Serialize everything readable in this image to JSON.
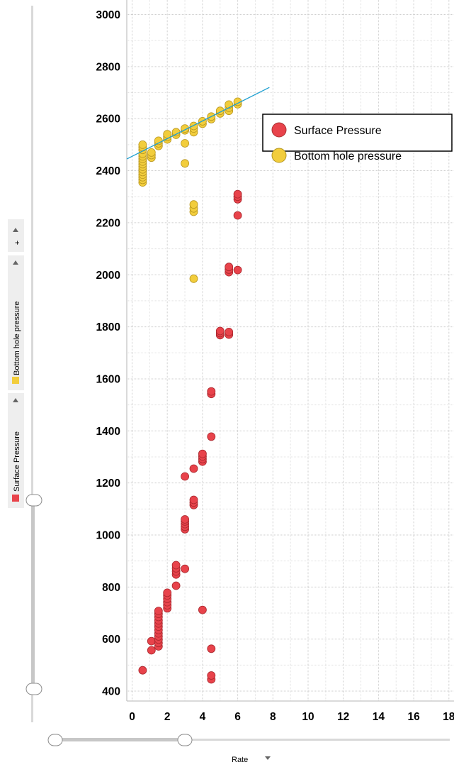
{
  "chart_data": {
    "type": "scatter",
    "xlabel": "Rate",
    "xlim": [
      0,
      19
    ],
    "ylim": [
      380,
      3000
    ],
    "xticks": [
      "0",
      "2",
      "4",
      "6",
      "8",
      "10",
      "12",
      "14",
      "16",
      "18"
    ],
    "yticks": [
      "400",
      "600",
      "800",
      "1000",
      "1200",
      "1400",
      "1600",
      "1800",
      "2000",
      "2200",
      "2400",
      "2600",
      "2800",
      "3000"
    ],
    "grid": true,
    "legend_position": "top-right",
    "series": [
      {
        "name": "Surface Pressure",
        "color": "#e8434b",
        "points": [
          [
            0.6,
            480
          ],
          [
            1.1,
            557
          ],
          [
            1.1,
            592
          ],
          [
            1.5,
            572
          ],
          [
            1.5,
            585
          ],
          [
            1.5,
            598
          ],
          [
            1.5,
            610
          ],
          [
            1.5,
            622
          ],
          [
            1.5,
            635
          ],
          [
            1.5,
            648
          ],
          [
            1.5,
            660
          ],
          [
            1.5,
            672
          ],
          [
            1.5,
            685
          ],
          [
            1.5,
            697
          ],
          [
            1.5,
            708
          ],
          [
            2.0,
            718
          ],
          [
            2.0,
            730
          ],
          [
            2.0,
            742
          ],
          [
            2.0,
            755
          ],
          [
            2.0,
            768
          ],
          [
            2.0,
            778
          ],
          [
            2.5,
            805
          ],
          [
            2.5,
            848
          ],
          [
            2.5,
            860
          ],
          [
            2.5,
            872
          ],
          [
            2.5,
            884
          ],
          [
            3.0,
            870
          ],
          [
            3.0,
            1022
          ],
          [
            3.0,
            1032
          ],
          [
            3.0,
            1042
          ],
          [
            3.0,
            1052
          ],
          [
            3.0,
            1060
          ],
          [
            3.0,
            1225
          ],
          [
            3.5,
            1115
          ],
          [
            3.5,
            1125
          ],
          [
            3.5,
            1135
          ],
          [
            3.5,
            1255
          ],
          [
            4.0,
            712
          ],
          [
            4.0,
            1282
          ],
          [
            4.0,
            1292
          ],
          [
            4.0,
            1302
          ],
          [
            4.0,
            1312
          ],
          [
            4.5,
            445
          ],
          [
            4.5,
            460
          ],
          [
            4.5,
            563
          ],
          [
            4.5,
            1378
          ],
          [
            4.5,
            1542
          ],
          [
            4.5,
            1552
          ],
          [
            5.0,
            1768
          ],
          [
            5.0,
            1776
          ],
          [
            5.0,
            1784
          ],
          [
            5.5,
            1770
          ],
          [
            5.5,
            1780
          ],
          [
            5.5,
            2010
          ],
          [
            5.5,
            2020
          ],
          [
            5.5,
            2030
          ],
          [
            6.0,
            2018
          ],
          [
            6.0,
            2228
          ],
          [
            6.0,
            2290
          ],
          [
            6.0,
            2300
          ],
          [
            6.0,
            2310
          ]
        ]
      },
      {
        "name": "Bottom hole pressure",
        "color": "#f2cd3c",
        "points": [
          [
            0.6,
            2355
          ],
          [
            0.6,
            2365
          ],
          [
            0.6,
            2375
          ],
          [
            0.6,
            2385
          ],
          [
            0.6,
            2395
          ],
          [
            0.6,
            2405
          ],
          [
            0.6,
            2415
          ],
          [
            0.6,
            2425
          ],
          [
            0.6,
            2435
          ],
          [
            0.6,
            2445
          ],
          [
            0.6,
            2455
          ],
          [
            0.6,
            2465
          ],
          [
            0.6,
            2480
          ],
          [
            0.6,
            2490
          ],
          [
            0.6,
            2500
          ],
          [
            1.1,
            2450
          ],
          [
            1.1,
            2460
          ],
          [
            1.1,
            2470
          ],
          [
            1.5,
            2495
          ],
          [
            1.5,
            2505
          ],
          [
            1.5,
            2515
          ],
          [
            2.0,
            2520
          ],
          [
            2.0,
            2530
          ],
          [
            2.0,
            2540
          ],
          [
            2.5,
            2538
          ],
          [
            2.5,
            2548
          ],
          [
            3.0,
            2428
          ],
          [
            3.0,
            2505
          ],
          [
            3.0,
            2555
          ],
          [
            3.0,
            2562
          ],
          [
            3.5,
            1985
          ],
          [
            3.5,
            2242
          ],
          [
            3.5,
            2255
          ],
          [
            3.5,
            2270
          ],
          [
            3.5,
            2548
          ],
          [
            3.5,
            2562
          ],
          [
            3.5,
            2572
          ],
          [
            4.0,
            2580
          ],
          [
            4.0,
            2590
          ],
          [
            4.5,
            2598
          ],
          [
            4.5,
            2608
          ],
          [
            5.0,
            2620
          ],
          [
            5.0,
            2630
          ],
          [
            5.5,
            2630
          ],
          [
            5.5,
            2642
          ],
          [
            5.5,
            2654
          ],
          [
            6.0,
            2655
          ],
          [
            6.0,
            2665
          ]
        ]
      }
    ],
    "trendline": {
      "color": "#1e9fd0",
      "x": [
        -0.3,
        7.8
      ],
      "y": [
        2445,
        2720
      ]
    }
  },
  "left_panel": {
    "series_labels": [
      "Surface Pressure",
      "Bottom hole pressure"
    ],
    "add_symbol": "+",
    "swatch_colors": [
      "#e8434b",
      "#f2cd3c"
    ]
  },
  "x_axis_control": {
    "label": "Rate",
    "dropdown_icon": "caret-down-icon"
  }
}
